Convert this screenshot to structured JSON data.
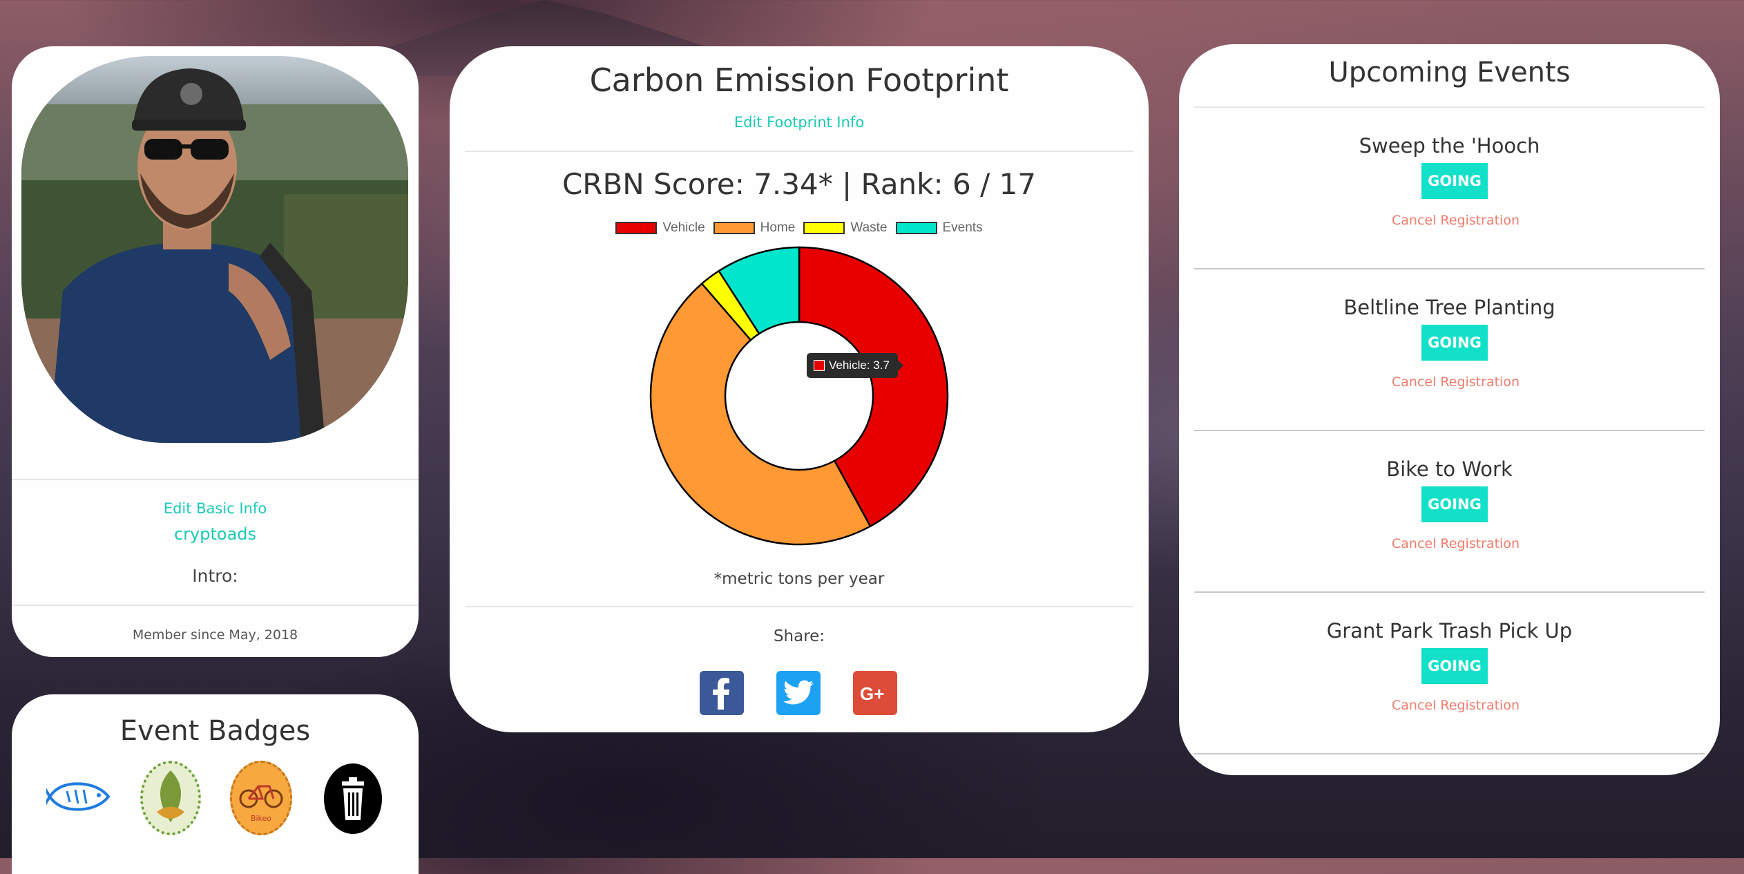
{
  "profile": {
    "edit_basic_info": "Edit Basic Info",
    "username": "cryptoads",
    "intro_label": "Intro:",
    "member_since": "Member since May, 2018"
  },
  "badges": {
    "title": "Event Badges",
    "items": [
      "fish-badge",
      "tree-leaves-badge",
      "bike-badge",
      "trash-badge"
    ]
  },
  "footprint": {
    "title": "Carbon Emission Footprint",
    "edit_link": "Edit Footprint Info",
    "score_line": "CRBN Score: 7.34* | Rank: 6 / 17",
    "footnote": "*metric tons per year",
    "share_label": "Share:",
    "tooltip": "Vehicle: 3.7",
    "share_buttons": [
      "facebook-icon",
      "twitter-icon",
      "google-plus-icon"
    ],
    "share_colors": {
      "facebook": "#3b5998",
      "twitter": "#1da1f2",
      "google_plus": "#dd4b39"
    }
  },
  "chart_data": {
    "type": "pie",
    "categories": [
      "Vehicle",
      "Home",
      "Waste",
      "Events"
    ],
    "values": [
      3.7,
      4.1,
      0.2,
      0.8
    ],
    "colors": [
      "#e60000",
      "#ff9933",
      "#ffff00",
      "#00e6cc"
    ],
    "legend_position": "top"
  },
  "events": {
    "title": "Upcoming Events",
    "items": [
      {
        "name": "Sweep the 'Hooch",
        "status": "GOING",
        "cancel": "Cancel Registration"
      },
      {
        "name": "Beltline Tree Planting",
        "status": "GOING",
        "cancel": "Cancel Registration"
      },
      {
        "name": "Bike to Work",
        "status": "GOING",
        "cancel": "Cancel Registration"
      },
      {
        "name": "Grant Park Trash Pick Up",
        "status": "GOING",
        "cancel": "Cancel Registration"
      }
    ]
  }
}
